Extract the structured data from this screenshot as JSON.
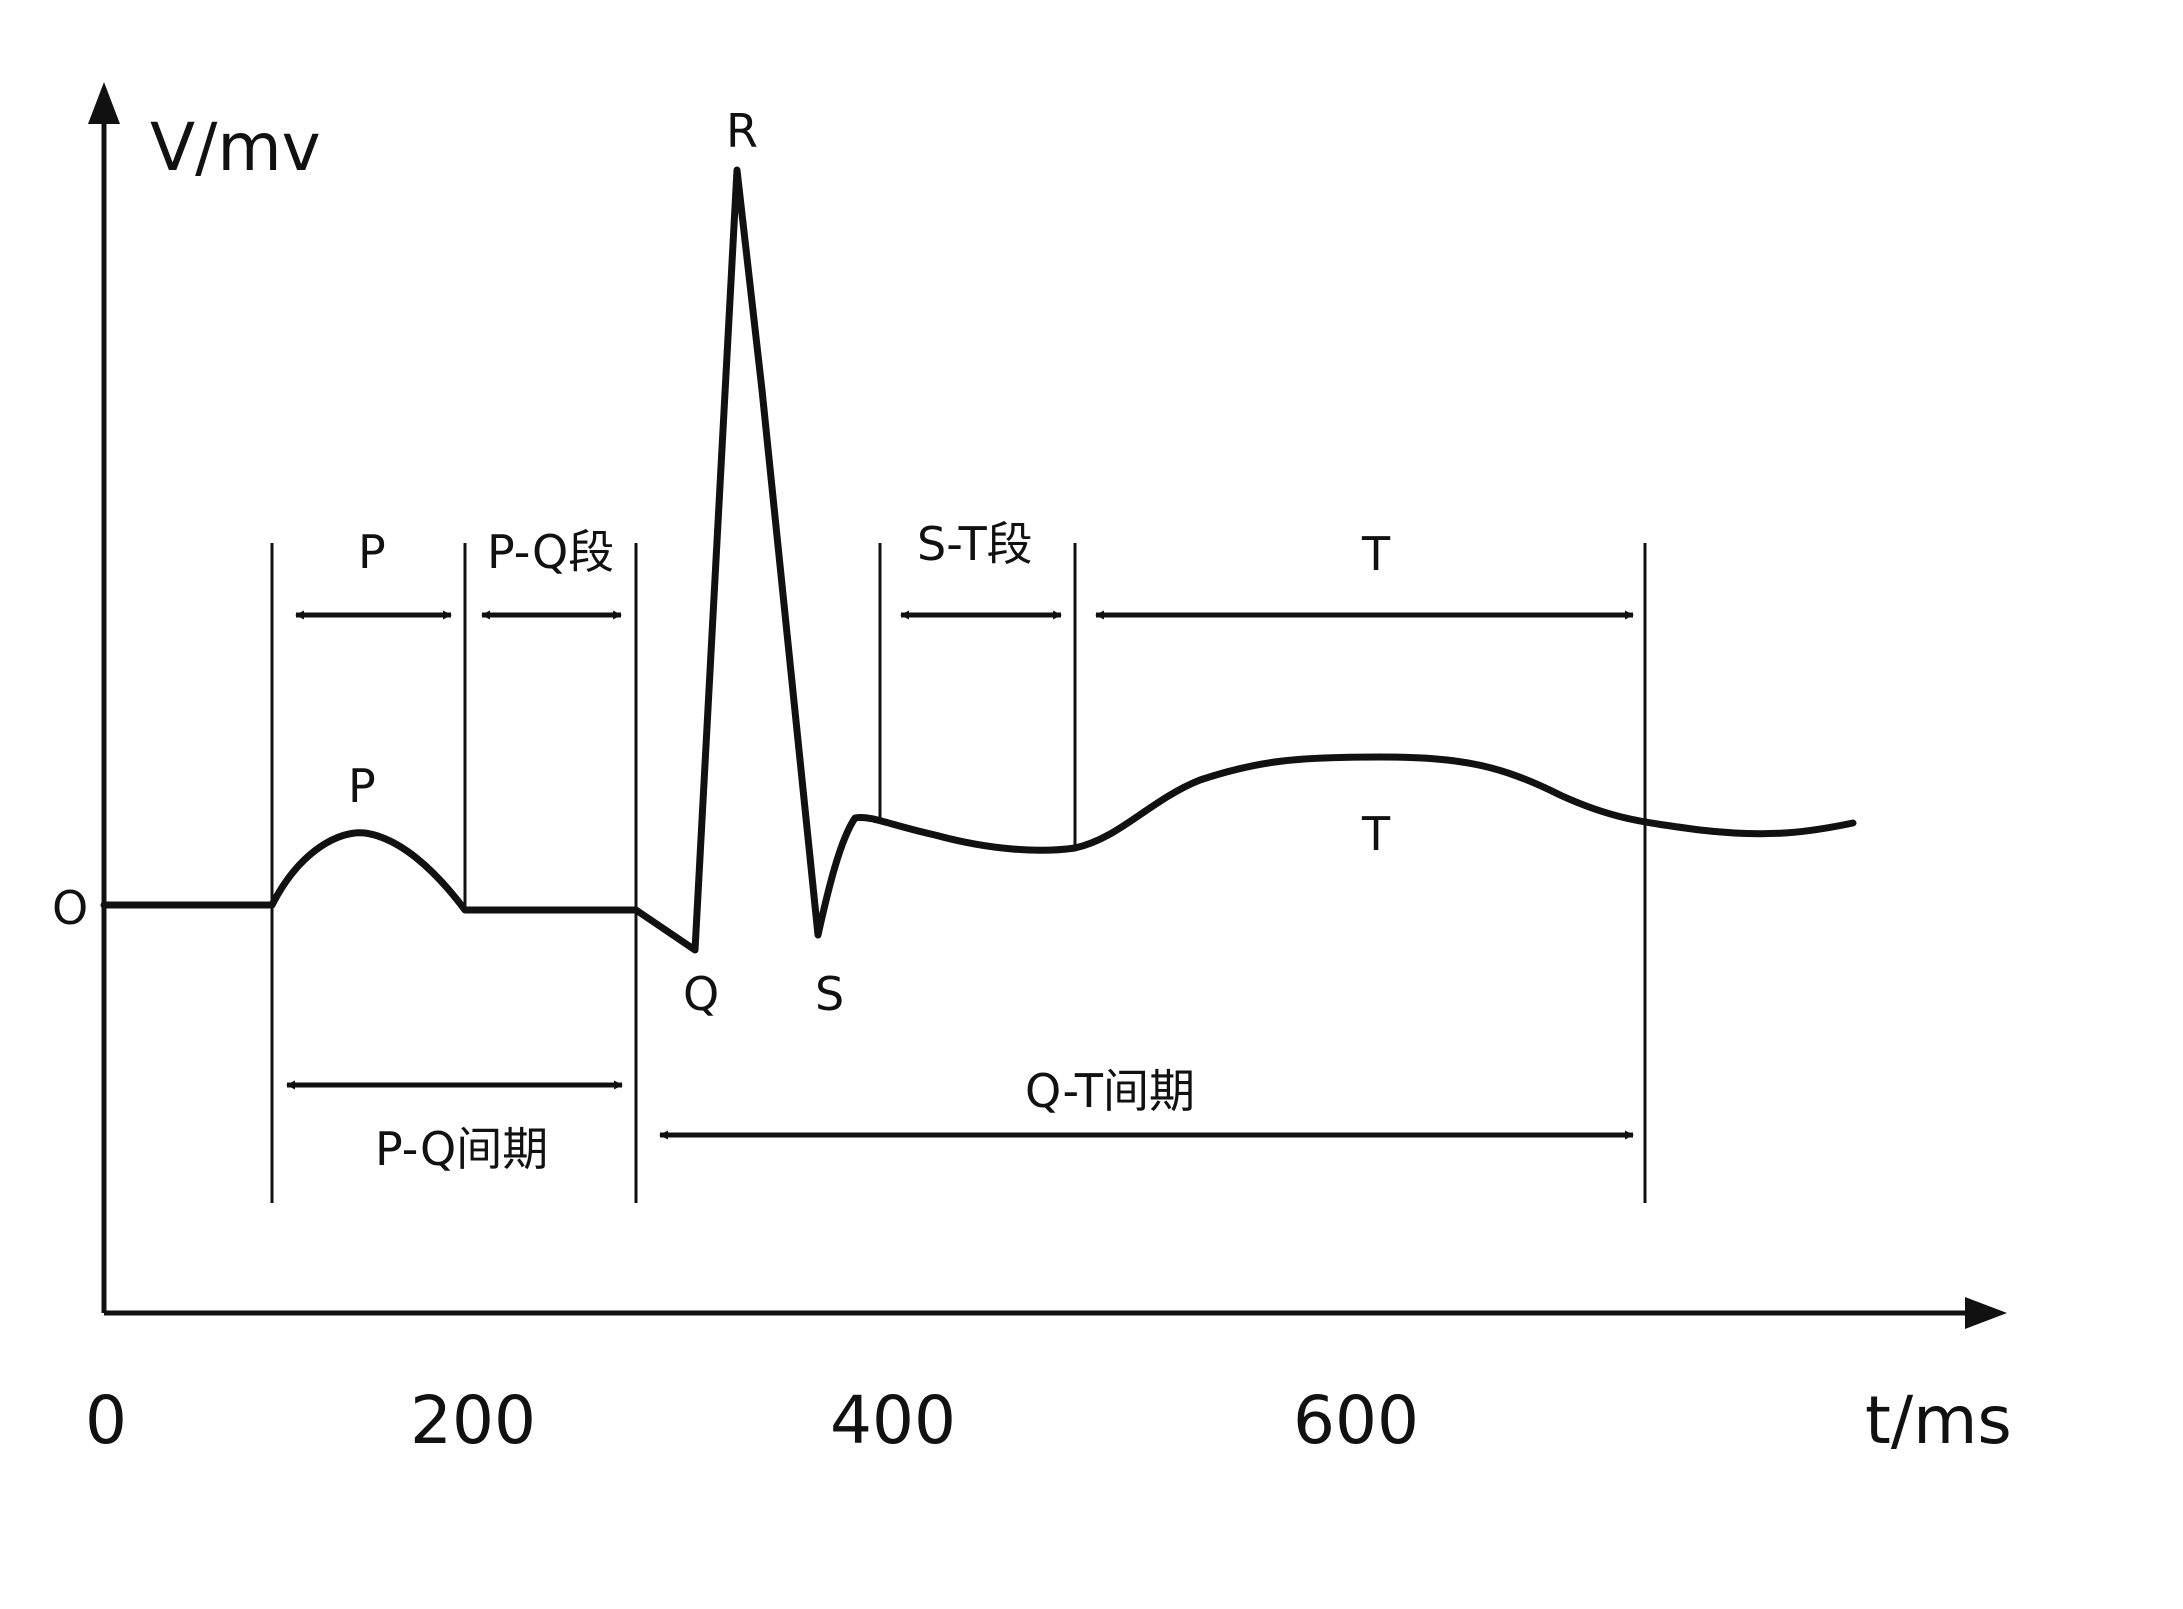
{
  "axes": {
    "y_label": "V/mv",
    "x_label": "t/ms",
    "origin_label": "O",
    "x_ticks": [
      "0",
      "200",
      "400",
      "600"
    ]
  },
  "waves": {
    "p": "P",
    "q": "Q",
    "r": "R",
    "s": "S",
    "t": "T"
  },
  "intervals": {
    "p_duration": "P",
    "pq_segment": "P-Q段",
    "st_segment": "S-T段",
    "t_duration": "T",
    "pq_interval": "P-Q间期",
    "qt_interval": "Q-T间期"
  },
  "colors": {
    "line": "#111111",
    "background": "#ffffff"
  }
}
